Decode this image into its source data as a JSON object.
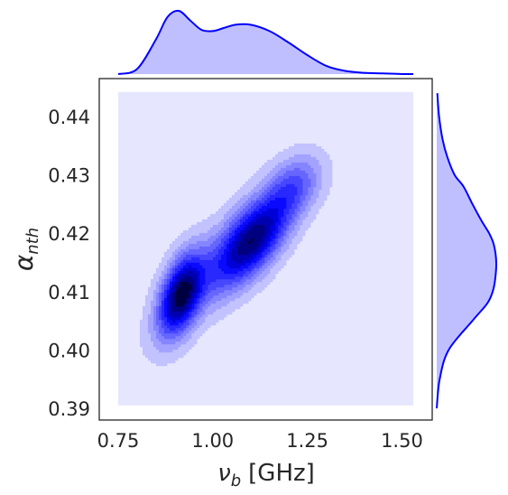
{
  "chart_data": {
    "type": "kde-joint",
    "colors": {
      "accent": "#0000ff",
      "marginal_fill": "#bfbfff",
      "plot_background": "#e6e6ff",
      "contour_levels": [
        "#e6e6ff",
        "#c2c2ff",
        "#a3a3ff",
        "#8585ff",
        "#6666ff",
        "#4747ff",
        "#2929ff",
        "#0a0aff",
        "#0000d9",
        "#0000b0",
        "#000080",
        "#000040"
      ]
    },
    "x_axis": {
      "label_main": "ν",
      "label_sub": "b",
      "label_unit": "[GHz]",
      "ticks": [
        0.75,
        1.0,
        1.25,
        1.5
      ],
      "tick_labels": [
        "0.75",
        "1.00",
        "1.25",
        "1.50"
      ],
      "range": [
        0.7,
        1.58
      ]
    },
    "y_axis": {
      "label_main": "α",
      "label_sub": "nth",
      "ticks": [
        0.39,
        0.4,
        0.41,
        0.42,
        0.43,
        0.44
      ],
      "tick_labels": [
        "0.39",
        "0.40",
        "0.41",
        "0.42",
        "0.43",
        "0.44"
      ],
      "range": [
        0.388,
        0.4465
      ]
    },
    "filled_region": {
      "x": [
        0.75,
        1.53
      ],
      "y": [
        0.3905,
        0.4442
      ]
    },
    "density_components": [
      {
        "weight": 1.0,
        "mean": [
          0.915,
          0.4095
        ],
        "sigma": [
          0.04,
          0.0048
        ],
        "rho": 0.45
      },
      {
        "weight": 0.95,
        "mean": [
          1.11,
          0.419
        ],
        "sigma": [
          0.07,
          0.0055
        ],
        "rho": 0.65
      },
      {
        "weight": 0.35,
        "mean": [
          1.22,
          0.4285
        ],
        "sigma": [
          0.05,
          0.0035
        ],
        "rho": 0.3
      },
      {
        "weight": 0.25,
        "mean": [
          1.0,
          0.414
        ],
        "sigma": [
          0.1,
          0.008
        ],
        "rho": 0.8
      }
    ],
    "marginal_x": {
      "x": [
        0.75,
        0.8,
        0.85,
        0.88,
        0.91,
        0.94,
        0.97,
        1.0,
        1.03,
        1.06,
        1.1,
        1.15,
        1.2,
        1.25,
        1.3,
        1.35,
        1.4,
        1.45,
        1.5,
        1.53
      ],
      "density": [
        0.0,
        0.08,
        0.55,
        0.9,
        1.0,
        0.85,
        0.7,
        0.68,
        0.73,
        0.78,
        0.78,
        0.68,
        0.5,
        0.3,
        0.13,
        0.05,
        0.02,
        0.01,
        0.0,
        0.0
      ]
    },
    "marginal_y": {
      "y": [
        0.39,
        0.395,
        0.4,
        0.405,
        0.408,
        0.41,
        0.412,
        0.415,
        0.418,
        0.42,
        0.422,
        0.425,
        0.428,
        0.43,
        0.433,
        0.436,
        0.44,
        0.444
      ],
      "density": [
        0.0,
        0.05,
        0.2,
        0.6,
        0.85,
        0.94,
        0.98,
        1.0,
        0.96,
        0.88,
        0.76,
        0.6,
        0.45,
        0.3,
        0.18,
        0.1,
        0.04,
        0.01
      ]
    }
  }
}
